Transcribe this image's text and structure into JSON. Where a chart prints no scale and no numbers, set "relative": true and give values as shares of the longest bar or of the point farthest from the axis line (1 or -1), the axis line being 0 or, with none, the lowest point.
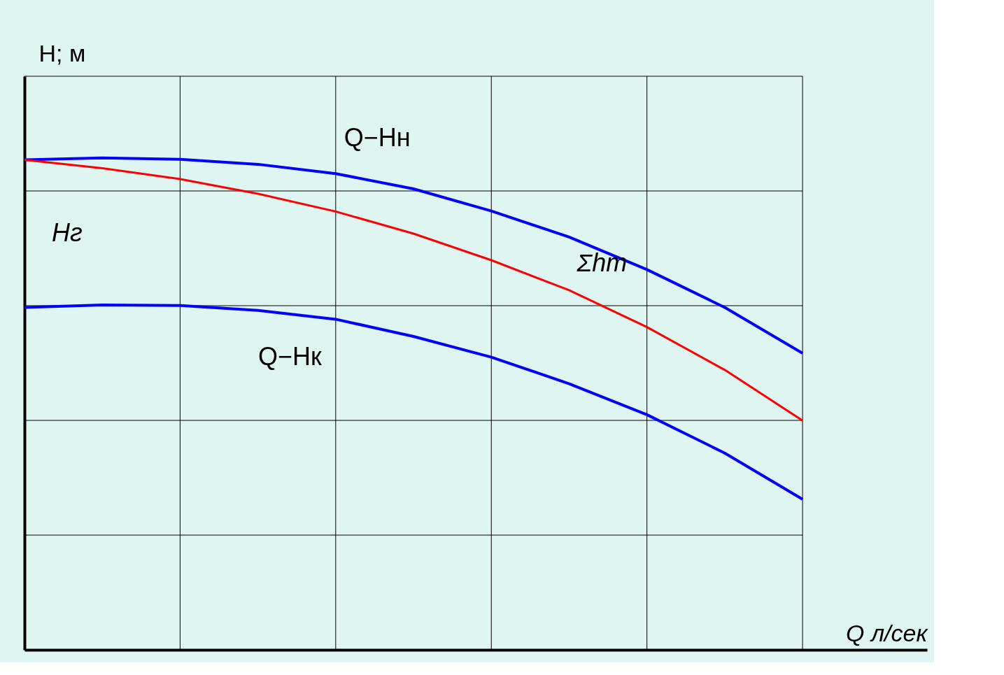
{
  "chart_data": {
    "type": "line",
    "relative": true,
    "xlabel": "Q  л/сек",
    "ylabel": "H;  м",
    "categories": [
      null,
      null,
      null,
      null,
      null,
      null,
      null,
      null,
      null,
      null,
      null
    ],
    "series": [
      {
        "name": "Q−Hн",
        "color": "#0000ff",
        "values": [
          0.996,
          1.0,
          0.997,
          0.987,
          0.968,
          0.937,
          0.892,
          0.839,
          0.773,
          0.696,
          0.603
        ]
      },
      {
        "color": "#ff0000",
        "values": [
          0.996,
          0.979,
          0.957,
          0.927,
          0.891,
          0.846,
          0.792,
          0.731,
          0.656,
          0.569,
          0.466
        ]
      },
      {
        "name": "Q−Hк",
        "color": "#0000ff",
        "values": [
          0.696,
          0.701,
          0.7,
          0.69,
          0.672,
          0.637,
          0.595,
          0.541,
          0.478,
          0.4,
          0.306
        ]
      }
    ],
    "annotations": [
      "Hг",
      "Σhт"
    ],
    "grid": true,
    "marker": "none",
    "line_style": "solid"
  }
}
